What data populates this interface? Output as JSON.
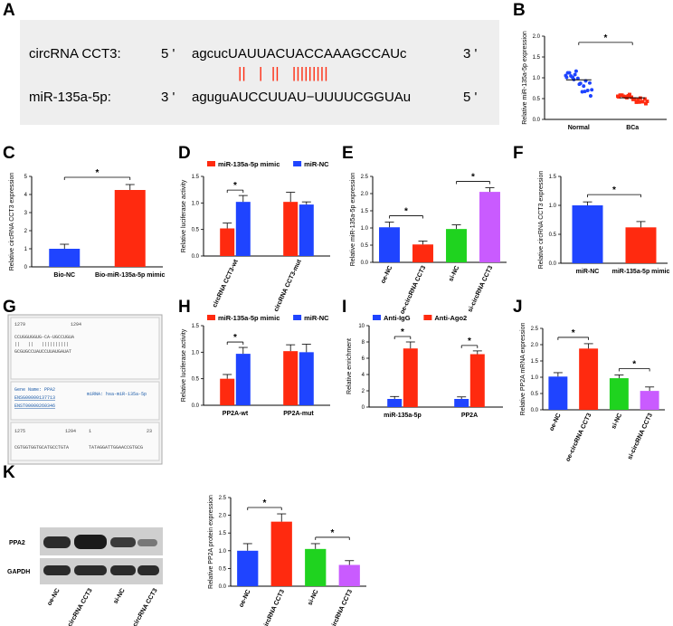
{
  "panel_labels": {
    "A": "A",
    "B": "B",
    "C": "C",
    "D": "D",
    "E": "E",
    "F": "F",
    "G": "G",
    "H": "H",
    "I": "I",
    "J": "J",
    "K": "K"
  },
  "colors": {
    "blue": "#1f44ff",
    "red": "#ff2a0f",
    "green": "#1fd31f",
    "purple": "#c95bff",
    "grey_box": "#eeeeee"
  },
  "panelA": {
    "row1_label": "circRNA CCT3:",
    "row1_p5": "5 '",
    "row1_seq": "agcucUAUUACUACCAAAGCCAUc",
    "row1_p3": "3 '",
    "row2_label": "miR-135a-5p:",
    "row2_p3": "3 '",
    "row2_seq": "aguguAUCCUUAU−UUUUCGGUAu",
    "row2_p5": "5 '",
    "pairing": "||   |  ||   |||||||||"
  },
  "panelG": {
    "line1_left": "1279",
    "line1_right": "1294",
    "seq_top": "CCUGGUGGUG-CA-UGCCUGUA",
    "seq_mid": "||   ||   ||||||||||",
    "seq_bot": "GCGUGCCUAUCCUUAUGAUAT",
    "gene_name": "Gene Name: PPA2",
    "gene_id1": "ENSG00000137713",
    "gene_id2": "ENST00000260346",
    "mirna": "miRNA: hsa-miR-135a-5p",
    "line2_left": "1275",
    "line2_mid": "1294",
    "line2_n1": "1",
    "line2_n2": "23",
    "seq_b1": "CGTGGTGGTGCATGCCTGTA",
    "seq_b2": "TATAGGATTGGAACCGTGCG"
  },
  "panelK": {
    "blot_labels": [
      "PPA2",
      "GAPDH"
    ],
    "lane_labels": [
      "oe-NC",
      "oe-circRNA CCT3",
      "si-NC",
      "si-circRNA CCT3"
    ]
  },
  "chart_data": [
    {
      "panel": "B",
      "type": "scatter",
      "ylabel": "Relative miR-135a-5p expression",
      "categories": [
        "Normal",
        "BCa"
      ],
      "ylim": [
        0,
        2.0
      ],
      "yticks": [
        "0.0",
        "0.5",
        "1.0",
        "1.5",
        "2.0"
      ],
      "means": [
        0.95,
        0.52
      ],
      "annotations": [
        "*"
      ]
    },
    {
      "panel": "C",
      "type": "bar",
      "ylabel": "Relative circRNA CCT3 expression",
      "categories": [
        "Bio-NC",
        "Bio-miR-135a-5p mimic"
      ],
      "values": [
        1.0,
        4.25
      ],
      "errors": [
        0.25,
        0.3
      ],
      "ylim": [
        0,
        5
      ],
      "yticks": [
        "0",
        "1",
        "2",
        "3",
        "4",
        "5"
      ],
      "annotations": [
        "*"
      ]
    },
    {
      "panel": "D",
      "type": "bar",
      "ylabel": "Relative luciferase activity",
      "categories": [
        "circRNA CCT3-wt",
        "circRNA CCT3-mut"
      ],
      "yticks": [
        "0.0",
        "0.5",
        "1.0",
        "1.5"
      ],
      "ylim": [
        0,
        1.5
      ],
      "series": [
        {
          "name": "miR-135a-5p mimic",
          "values": [
            0.52,
            1.02
          ],
          "errors": [
            0.1,
            0.18
          ]
        },
        {
          "name": "miR-NC",
          "values": [
            1.02,
            0.97
          ],
          "errors": [
            0.12,
            0.05
          ]
        }
      ],
      "annotations": [
        "*"
      ]
    },
    {
      "panel": "E",
      "type": "bar",
      "ylabel": "Relative miR-135a-5p expression",
      "categories": [
        "oe-NC",
        "oe-circRNA CCT3",
        "si-NC",
        "si-circRNA CCT3"
      ],
      "values": [
        1.02,
        0.52,
        0.97,
        2.05
      ],
      "errors": [
        0.15,
        0.1,
        0.12,
        0.12
      ],
      "ylim": [
        0,
        2.5
      ],
      "yticks": [
        "0.0",
        "0.5",
        "1.0",
        "1.5",
        "2.0",
        "2.5"
      ],
      "annotations": [
        "*",
        "*"
      ]
    },
    {
      "panel": "F",
      "type": "bar",
      "ylabel": "Relative circRNA CCT3 expression",
      "categories": [
        "miR-NC",
        "miR-135a-5p mimic"
      ],
      "values": [
        1.0,
        0.62
      ],
      "errors": [
        0.06,
        0.1
      ],
      "ylim": [
        0,
        1.5
      ],
      "yticks": [
        "0.0",
        "0.5",
        "1.0",
        "1.5"
      ],
      "annotations": [
        "*"
      ]
    },
    {
      "panel": "H",
      "type": "bar",
      "ylabel": "Relative luciferase activity",
      "categories": [
        "PP2A-wt",
        "PP2A-mut"
      ],
      "yticks": [
        "0.0",
        "0.5",
        "1.0",
        "1.5"
      ],
      "ylim": [
        0,
        1.5
      ],
      "series": [
        {
          "name": "miR-135a-5p mimic",
          "values": [
            0.5,
            1.02
          ],
          "errors": [
            0.08,
            0.12
          ]
        },
        {
          "name": "miR-NC",
          "values": [
            0.97,
            1.0
          ],
          "errors": [
            0.12,
            0.15
          ]
        }
      ],
      "annotations": [
        "*"
      ]
    },
    {
      "panel": "I",
      "type": "bar",
      "ylabel": "Relative enrichment",
      "categories": [
        "miR-135a-5p",
        "PP2A"
      ],
      "yticks": [
        "0",
        "2",
        "4",
        "6",
        "8",
        "10"
      ],
      "ylim": [
        0,
        10
      ],
      "series": [
        {
          "name": "Anti-IgG",
          "values": [
            1.0,
            1.0
          ],
          "errors": [
            0.3,
            0.25
          ]
        },
        {
          "name": "Anti-Ago2",
          "values": [
            7.2,
            6.5
          ],
          "errors": [
            0.8,
            0.4
          ]
        }
      ],
      "annotations": [
        "*",
        "*"
      ]
    },
    {
      "panel": "J",
      "type": "bar",
      "ylabel": "Relative PP2A mRNA expression",
      "categories": [
        "oe-NC",
        "oe-circRNA CCT3",
        "si-NC",
        "si-circRNA CCT3"
      ],
      "values": [
        1.02,
        1.88,
        0.97,
        0.58
      ],
      "errors": [
        0.12,
        0.15,
        0.1,
        0.12
      ],
      "ylim": [
        0,
        2.5
      ],
      "yticks": [
        "0.0",
        "0.5",
        "1.0",
        "1.5",
        "2.0",
        "2.5"
      ],
      "annotations": [
        "*",
        "*"
      ]
    },
    {
      "panel": "K",
      "type": "bar",
      "ylabel": "Relative PP2A protein expression",
      "categories": [
        "oe-NC",
        "oe-circRNA CCT3",
        "si-NC",
        "si-circRNA CCT3"
      ],
      "values": [
        1.0,
        1.82,
        1.05,
        0.6
      ],
      "errors": [
        0.2,
        0.22,
        0.15,
        0.12
      ],
      "ylim": [
        0,
        2.5
      ],
      "yticks": [
        "0.0",
        "0.5",
        "1.0",
        "1.5",
        "2.0",
        "2.5"
      ],
      "annotations": [
        "*",
        "*"
      ]
    }
  ]
}
